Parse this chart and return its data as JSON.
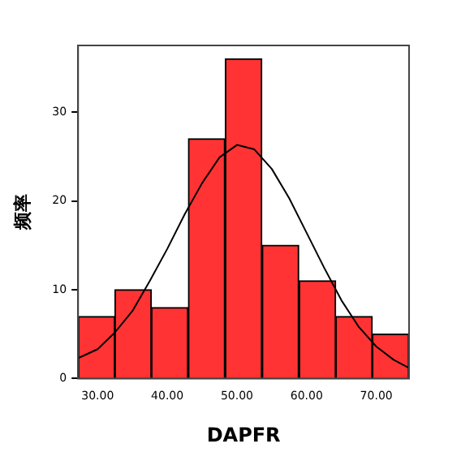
{
  "chart_data": {
    "type": "histogram",
    "xlabel": "DAPFR",
    "ylabel": "频率",
    "bins": [
      27.2,
      32.5,
      37.7,
      43.0,
      48.3,
      53.6,
      58.9,
      64.2,
      69.4,
      74.7
    ],
    "values": [
      7,
      10,
      8,
      27,
      36,
      15,
      11,
      7,
      5
    ],
    "color": "#ff3333",
    "series": [
      {
        "type": "line",
        "color": "#000000",
        "marker": "none",
        "x": [
          27.2,
          30,
          32.5,
          35,
          37.5,
          40,
          42.5,
          45,
          47.5,
          50,
          52.5,
          55,
          57.5,
          60,
          62.5,
          65,
          67.5,
          70,
          72.5,
          74.7
        ],
        "values": [
          2.3,
          3.3,
          5.2,
          7.6,
          11,
          14.6,
          18.5,
          22,
          24.9,
          26.3,
          25.8,
          23.6,
          20.3,
          16.4,
          12.5,
          8.8,
          5.8,
          3.6,
          2.1,
          1.2
        ]
      }
    ],
    "xlim": [
      27.2,
      74.7
    ],
    "xticks": [
      {
        "value": 30,
        "label": "30.00"
      },
      {
        "value": 40,
        "label": "40.00"
      },
      {
        "value": 50,
        "label": "50.00"
      },
      {
        "value": 60,
        "label": "60.00"
      },
      {
        "value": 70,
        "label": "70.00"
      }
    ],
    "ylim": [
      0,
      37.5
    ],
    "yticks": [
      0,
      10,
      20,
      30
    ],
    "grid": false,
    "legend": false
  }
}
